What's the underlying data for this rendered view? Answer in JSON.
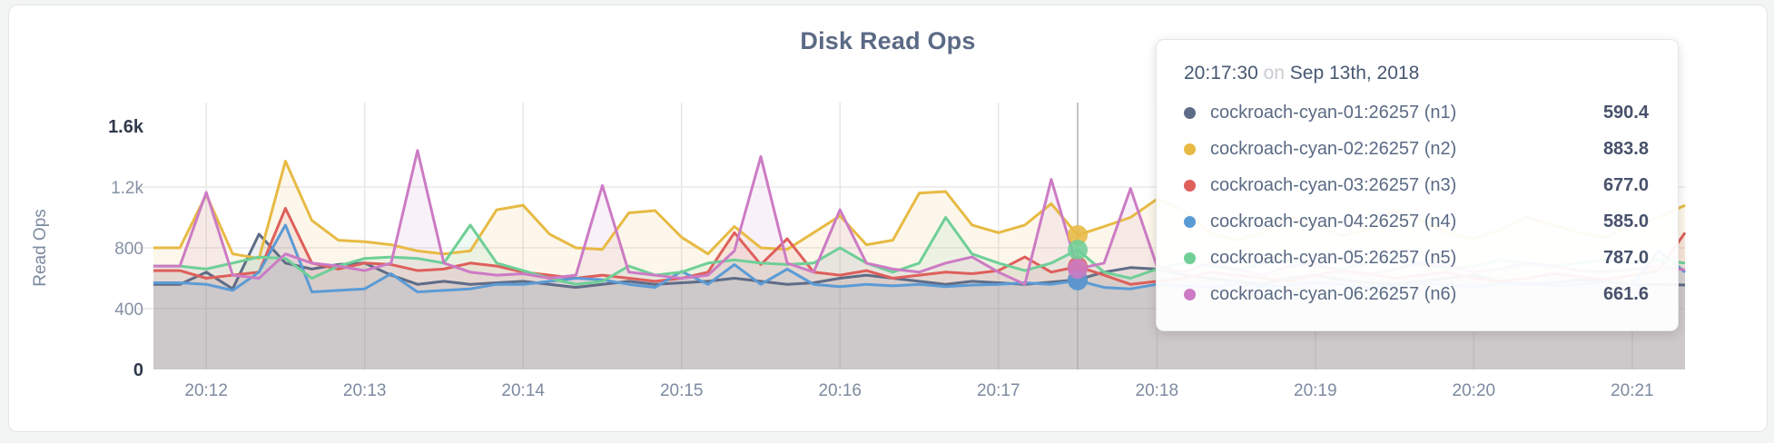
{
  "chart_data": {
    "type": "line",
    "title": "Disk Read Ops",
    "xlabel": "",
    "ylabel": "Read Ops",
    "ylim": [
      0,
      1600
    ],
    "x_start_time": "20:11:40",
    "sample_interval_s": 10,
    "x_domain_s": [
      0,
      580
    ],
    "grid": true,
    "legend_position": "tooltip",
    "y_ticks": [
      {
        "v": 0,
        "label": "0",
        "emph": true
      },
      {
        "v": 400,
        "label": "400",
        "emph": false
      },
      {
        "v": 800,
        "label": "800",
        "emph": false
      },
      {
        "v": 1200,
        "label": "1.2k",
        "emph": false
      },
      {
        "v": 1600,
        "label": "1.6k",
        "emph": true
      }
    ],
    "x_ticks": [
      {
        "t": 20,
        "label": "20:12"
      },
      {
        "t": 80,
        "label": "20:13"
      },
      {
        "t": 140,
        "label": "20:14"
      },
      {
        "t": 200,
        "label": "20:15"
      },
      {
        "t": 260,
        "label": "20:16"
      },
      {
        "t": 320,
        "label": "20:17"
      },
      {
        "t": 380,
        "label": "20:18"
      },
      {
        "t": 440,
        "label": "20:19"
      },
      {
        "t": 500,
        "label": "20:20"
      },
      {
        "t": 560,
        "label": "20:21"
      }
    ],
    "series": [
      {
        "name": "cockroach-cyan-01:26257 (n1)",
        "color": "#5f6c87",
        "values": [
          560,
          560,
          640,
          530,
          890,
          700,
          660,
          690,
          700,
          620,
          560,
          580,
          560,
          570,
          580,
          560,
          540,
          560,
          580,
          560,
          570,
          580,
          600,
          580,
          560,
          570,
          600,
          620,
          600,
          580,
          560,
          580,
          570,
          560,
          575,
          590.4,
          640,
          670,
          660,
          620,
          600,
          580,
          560,
          600,
          620,
          590,
          570,
          560,
          580,
          600,
          620,
          580,
          560,
          570,
          590,
          580,
          560,
          560,
          555
        ]
      },
      {
        "name": "cockroach-cyan-02:26257 (n2)",
        "color": "#e7ba44",
        "values": [
          800,
          800,
          1150,
          760,
          730,
          1370,
          980,
          850,
          840,
          820,
          780,
          760,
          780,
          1050,
          1080,
          890,
          800,
          790,
          1030,
          1045,
          870,
          760,
          940,
          800,
          790,
          900,
          1010,
          820,
          850,
          1160,
          1170,
          950,
          900,
          950,
          1090,
          883.8,
          940,
          1000,
          1120,
          1050,
          900,
          850,
          900,
          1000,
          950,
          880,
          920,
          1050,
          980,
          900,
          860,
          920,
          1000,
          950,
          900,
          870,
          950,
          1000,
          1080
        ]
      },
      {
        "name": "cockroach-cyan-03:26257 (n3)",
        "color": "#de5f5b",
        "values": [
          650,
          650,
          600,
          620,
          640,
          1060,
          700,
          660,
          700,
          690,
          650,
          660,
          700,
          680,
          640,
          620,
          600,
          620,
          600,
          580,
          600,
          640,
          900,
          690,
          860,
          640,
          620,
          650,
          600,
          620,
          640,
          630,
          650,
          740,
          640,
          677.0,
          620,
          560,
          580,
          600,
          640,
          620,
          600,
          580,
          620,
          650,
          630,
          600,
          620,
          640,
          600,
          580,
          600,
          630,
          610,
          590,
          620,
          650,
          900
        ]
      },
      {
        "name": "cockroach-cyan-04:26257 (n4)",
        "color": "#5b9bd5",
        "values": [
          570,
          570,
          560,
          520,
          640,
          950,
          510,
          520,
          530,
          630,
          510,
          520,
          530,
          560,
          560,
          580,
          600,
          590,
          560,
          540,
          645,
          560,
          690,
          560,
          660,
          560,
          545,
          560,
          550,
          560,
          545,
          555,
          560,
          570,
          560,
          585.0,
          540,
          530,
          560,
          550,
          540,
          560,
          545,
          555,
          570,
          560,
          540,
          550,
          565,
          555,
          545,
          560,
          570,
          550,
          560,
          575,
          560,
          780,
          640
        ]
      },
      {
        "name": "cockroach-cyan-05:26257 (n5)",
        "color": "#6fcf97",
        "values": [
          680,
          680,
          660,
          700,
          740,
          730,
          600,
          680,
          730,
          740,
          730,
          700,
          950,
          700,
          650,
          600,
          560,
          580,
          680,
          620,
          640,
          700,
          720,
          700,
          690,
          700,
          800,
          700,
          640,
          700,
          1000,
          760,
          700,
          650,
          700,
          787.0,
          640,
          600,
          660,
          700,
          680,
          650,
          700,
          720,
          680,
          660,
          700,
          750,
          700,
          660,
          680,
          720,
          700,
          680,
          700,
          720,
          700,
          720,
          700
        ]
      },
      {
        "name": "cockroach-cyan-06:26257 (n6)",
        "color": "#cc7bc4",
        "values": [
          680,
          680,
          1165,
          620,
          600,
          760,
          700,
          680,
          650,
          700,
          1440,
          700,
          640,
          620,
          630,
          600,
          620,
          1210,
          640,
          620,
          600,
          620,
          780,
          1400,
          700,
          640,
          1050,
          700,
          660,
          640,
          700,
          740,
          640,
          560,
          1250,
          661.6,
          700,
          1190,
          680,
          640,
          700,
          660,
          620,
          680,
          700,
          640,
          620,
          660,
          700,
          680,
          640,
          660,
          700,
          680,
          650,
          640,
          660,
          680,
          655
        ]
      }
    ],
    "hover": {
      "t": 350,
      "index": 35,
      "line_color": "#b0b0b0"
    }
  },
  "tooltip": {
    "time": "20:17:30",
    "connector": "on",
    "date": "Sep 13th, 2018",
    "rows": [
      {
        "label": "cockroach-cyan-01:26257 (n1)",
        "value": "590.4",
        "color": "#5f6c87"
      },
      {
        "label": "cockroach-cyan-02:26257 (n2)",
        "value": "883.8",
        "color": "#e7ba44"
      },
      {
        "label": "cockroach-cyan-03:26257 (n3)",
        "value": "677.0",
        "color": "#de5f5b"
      },
      {
        "label": "cockroach-cyan-04:26257 (n4)",
        "value": "585.0",
        "color": "#5b9bd5"
      },
      {
        "label": "cockroach-cyan-05:26257 (n5)",
        "value": "787.0",
        "color": "#6fcf97"
      },
      {
        "label": "cockroach-cyan-06:26257 (n6)",
        "value": "661.6",
        "color": "#cc7bc4"
      }
    ]
  }
}
